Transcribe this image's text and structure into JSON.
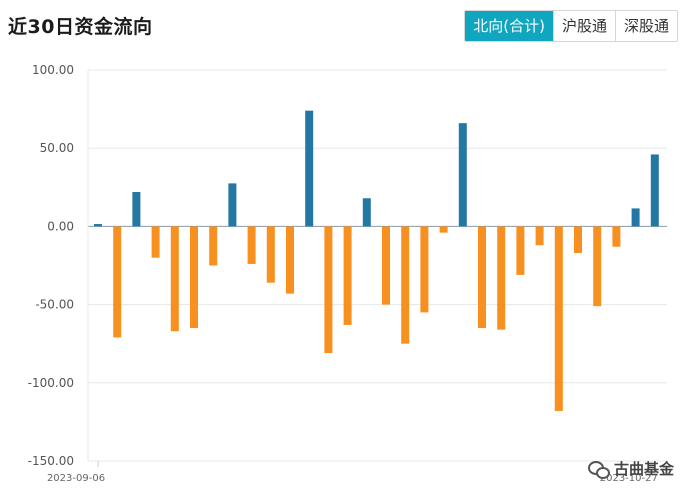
{
  "header": {
    "title": "近30日资金流向",
    "tabs": [
      {
        "label": "北向(合计)",
        "active": true
      },
      {
        "label": "沪股通",
        "active": false
      },
      {
        "label": "深股通",
        "active": false
      }
    ]
  },
  "watermark": "古曲基金",
  "colors": {
    "positive": "#2277a5",
    "negative": "#f7901e",
    "tab_active": "#10a6c0"
  },
  "chart_data": {
    "type": "bar",
    "title": "",
    "xlabel": "",
    "ylabel": "",
    "ylim": [
      -150,
      100
    ],
    "yticks": [
      100,
      50,
      0,
      -50,
      -100,
      -150
    ],
    "ytick_labels": [
      "100.00",
      "50.00",
      "0.00",
      "-50.00",
      "-100.00",
      "-150.00"
    ],
    "x_first_label": "2023-09-06",
    "x_last_label": "2023-10-27",
    "grid": true,
    "values": [
      1.5,
      -71,
      22,
      -20,
      -67,
      -65,
      -25,
      27.5,
      -24,
      -36,
      -43,
      74,
      -81,
      -63,
      18,
      -50,
      -75,
      -55,
      -4,
      66,
      -65,
      -66,
      -31,
      -12,
      -118,
      -17,
      -51,
      -13,
      11.5,
      46
    ]
  }
}
